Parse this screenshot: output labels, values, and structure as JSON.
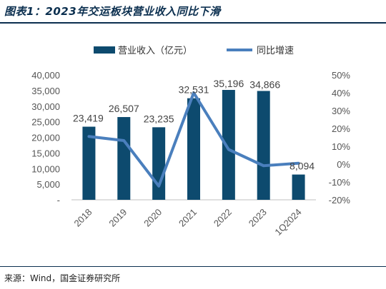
{
  "title": "图表1：2023年交运板块营业收入同比下滑",
  "source": "来源：Wind，国金证券研究所",
  "colors": {
    "bar": "#0d4a6e",
    "line": "#4a7fbd",
    "rule": "#0b2f4f"
  },
  "chart_data": {
    "type": "bar+line",
    "categories": [
      "2018",
      "2019",
      "2020",
      "2021",
      "2022",
      "2023",
      "1Q2024"
    ],
    "series": [
      {
        "name": "营业收入（亿元）",
        "type": "bar",
        "axis": "left",
        "values": [
          23419,
          26507,
          23235,
          32531,
          35196,
          34866,
          8094
        ],
        "labels": [
          "23,419",
          "26,507",
          "23,235",
          "32,531",
          "35,196",
          "34,866",
          "8,094"
        ]
      },
      {
        "name": "同比增速",
        "type": "line",
        "axis": "right",
        "values": [
          15.5,
          13.2,
          -12.3,
          40.0,
          8.2,
          -0.9,
          0.5
        ]
      }
    ],
    "y_left": {
      "ylim": [
        0,
        40000
      ],
      "ticks": [
        0,
        5000,
        10000,
        15000,
        20000,
        25000,
        30000,
        35000,
        40000
      ],
      "tick_labels": [
        "-",
        "5,000",
        "10,000",
        "15,000",
        "20,000",
        "25,000",
        "30,000",
        "35,000",
        "40,000"
      ]
    },
    "y_right": {
      "ylim": [
        -20,
        50
      ],
      "ticks": [
        -20,
        -10,
        0,
        10,
        20,
        30,
        40,
        50
      ],
      "tick_labels": [
        "-20%",
        "-10%",
        "0%",
        "10%",
        "20%",
        "30%",
        "40%",
        "50%"
      ]
    },
    "legend": {
      "placement": "top-center"
    },
    "grid": false
  }
}
